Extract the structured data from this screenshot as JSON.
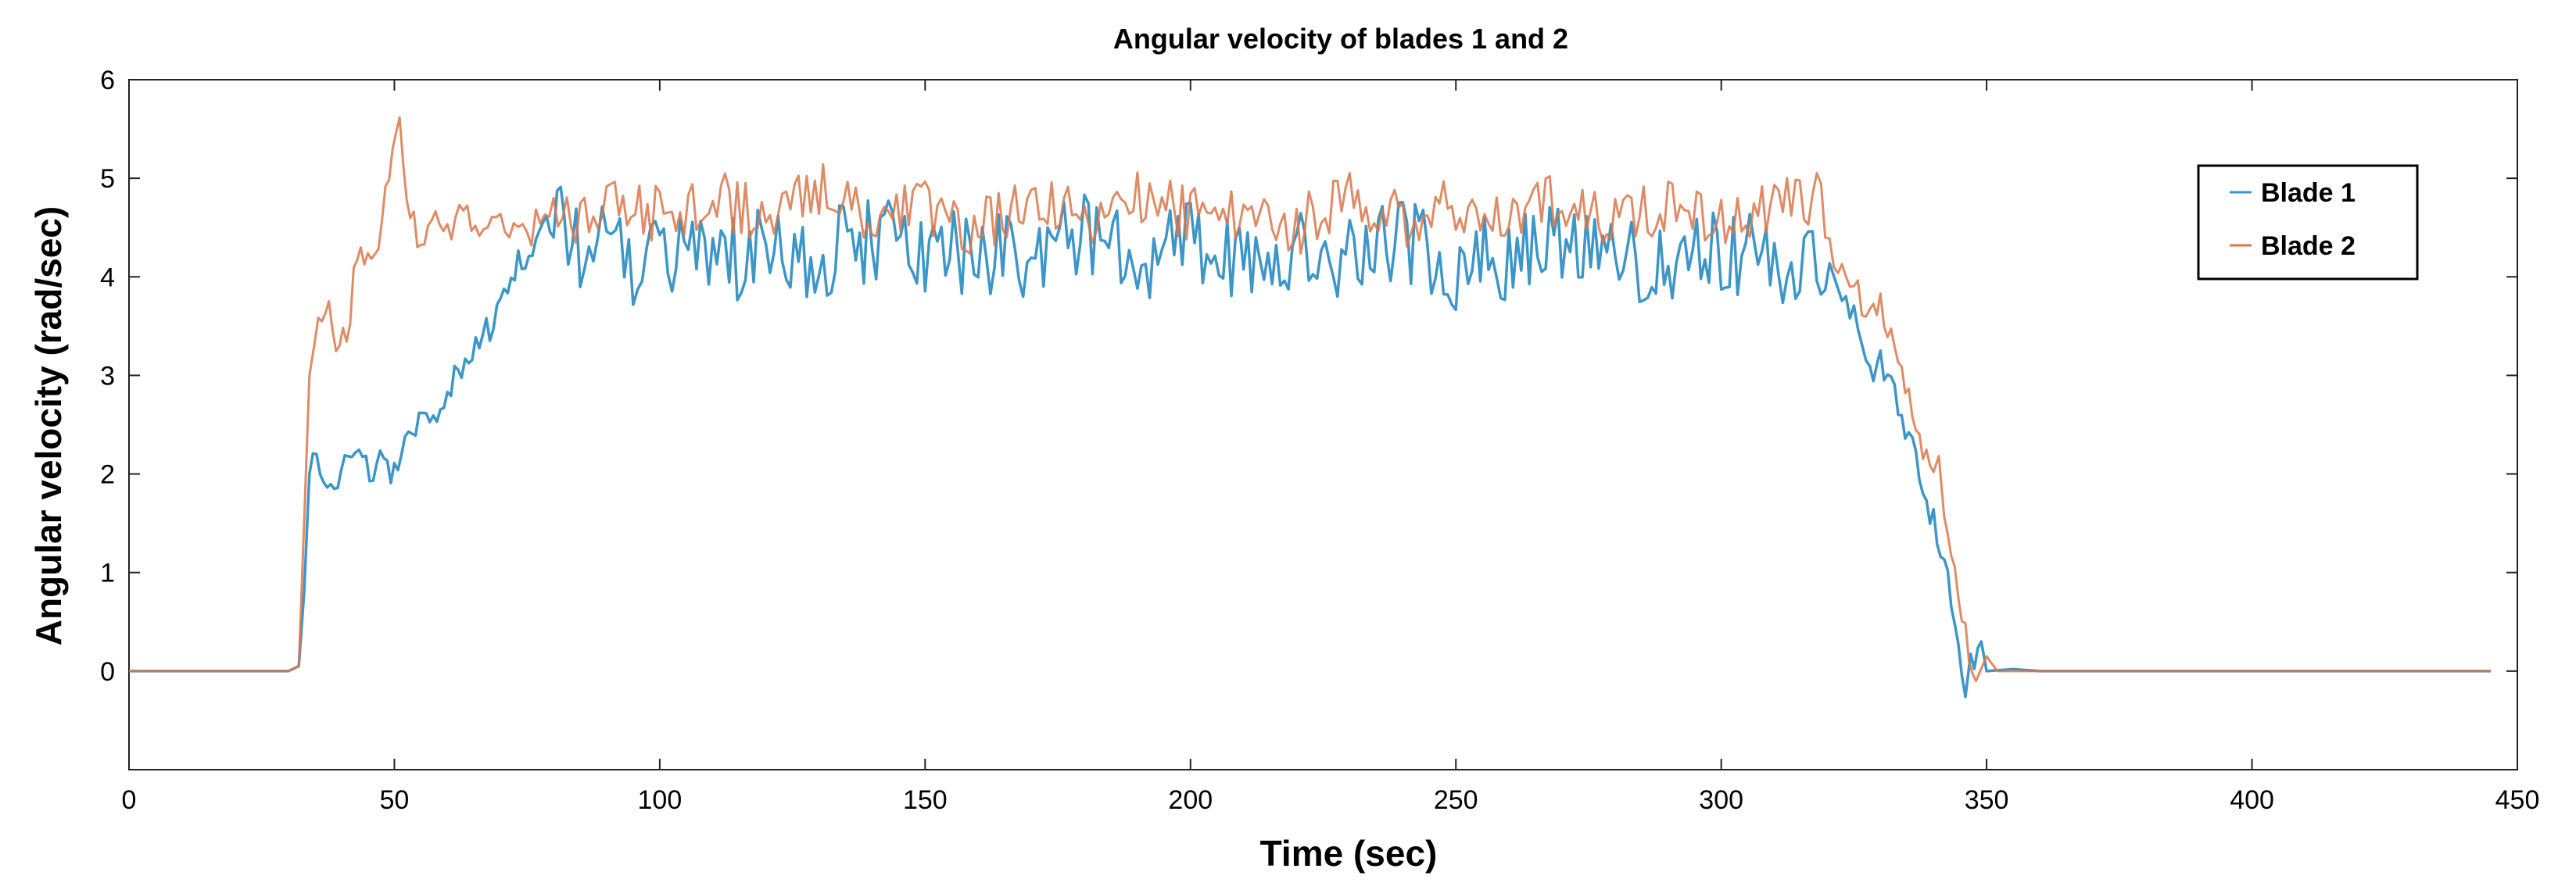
{
  "chart_data": {
    "type": "line",
    "title": "Angular velocity of blades 1 and 2",
    "xlabel": "Time (sec)",
    "ylabel": "Angular velocity (rad/sec)",
    "xlim": [
      0,
      450
    ],
    "ylim": [
      -1,
      6
    ],
    "xticks": [
      0,
      50,
      100,
      150,
      200,
      250,
      300,
      350,
      400,
      450
    ],
    "yticks": [
      0,
      1,
      2,
      3,
      4,
      5,
      6
    ],
    "xtick_labels": [
      "0",
      "50",
      "100",
      "150",
      "200",
      "250",
      "300",
      "350",
      "400",
      "450"
    ],
    "ytick_labels": [
      "0",
      "1",
      "2",
      "3",
      "4",
      "5",
      "6"
    ],
    "legend_position": "top-right",
    "series": [
      {
        "name": "Blade 1",
        "color": "#3c96c8",
        "points": [
          [
            0,
            0
          ],
          [
            30,
            0
          ],
          [
            32,
            0.05
          ],
          [
            33,
            0.8
          ],
          [
            34,
            2.0
          ],
          [
            36,
            2.1
          ],
          [
            38,
            2.0
          ],
          [
            40,
            2.05
          ],
          [
            42,
            2.1
          ],
          [
            44,
            2.2
          ],
          [
            46,
            2.0
          ],
          [
            48,
            2.2
          ],
          [
            50,
            2.0
          ],
          [
            52,
            2.3
          ],
          [
            54,
            2.5
          ],
          [
            56,
            2.7
          ],
          [
            58,
            2.6
          ],
          [
            60,
            2.9
          ],
          [
            62,
            3.1
          ],
          [
            64,
            3.1
          ],
          [
            66,
            3.3
          ],
          [
            68,
            3.5
          ],
          [
            70,
            3.8
          ],
          [
            72,
            4.0
          ],
          [
            74,
            4.2
          ],
          [
            76,
            4.3
          ],
          [
            78,
            4.5
          ],
          [
            80,
            4.4
          ],
          [
            82,
            4.6
          ],
          [
            85,
            4.3
          ],
          [
            90,
            4.4
          ],
          [
            95,
            4.0
          ],
          [
            100,
            4.3
          ],
          [
            110,
            4.1
          ],
          [
            120,
            4.3
          ],
          [
            130,
            4.2
          ],
          [
            140,
            4.4
          ],
          [
            150,
            4.2
          ],
          [
            160,
            4.3
          ],
          [
            170,
            4.2
          ],
          [
            180,
            4.4
          ],
          [
            190,
            4.2
          ],
          [
            200,
            4.3
          ],
          [
            210,
            4.1
          ],
          [
            220,
            4.3
          ],
          [
            230,
            4.2
          ],
          [
            240,
            4.4
          ],
          [
            250,
            4.1
          ],
          [
            260,
            4.2
          ],
          [
            270,
            4.3
          ],
          [
            280,
            4.1
          ],
          [
            290,
            4.2
          ],
          [
            300,
            4.3
          ],
          [
            310,
            4.1
          ],
          [
            318,
            4.2
          ],
          [
            322,
            3.9
          ],
          [
            325,
            3.6
          ],
          [
            328,
            3.0
          ],
          [
            330,
            3.2
          ],
          [
            332,
            2.9
          ],
          [
            334,
            2.6
          ],
          [
            336,
            2.3
          ],
          [
            338,
            1.9
          ],
          [
            340,
            1.5
          ],
          [
            342,
            1.1
          ],
          [
            344,
            0.6
          ],
          [
            346,
            -0.3
          ],
          [
            347,
            0.1
          ],
          [
            349,
            0.3
          ],
          [
            350,
            0
          ],
          [
            355,
            0.02
          ],
          [
            360,
            0
          ],
          [
            380,
            0
          ],
          [
            400,
            0
          ],
          [
            420,
            0
          ],
          [
            445,
            0
          ]
        ]
      },
      {
        "name": "Blade 2",
        "color": "#d9774b",
        "points": [
          [
            0,
            0
          ],
          [
            30,
            0
          ],
          [
            32,
            0.05
          ],
          [
            33,
            1.5
          ],
          [
            34,
            3.0
          ],
          [
            35,
            3.5
          ],
          [
            37,
            3.8
          ],
          [
            39,
            3.4
          ],
          [
            41,
            3.3
          ],
          [
            43,
            4.3
          ],
          [
            45,
            4.3
          ],
          [
            47,
            4.4
          ],
          [
            49,
            5.0
          ],
          [
            51,
            5.6
          ],
          [
            53,
            4.6
          ],
          [
            55,
            4.3
          ],
          [
            57,
            4.7
          ],
          [
            60,
            4.4
          ],
          [
            63,
            4.8
          ],
          [
            66,
            4.4
          ],
          [
            70,
            4.6
          ],
          [
            75,
            4.4
          ],
          [
            80,
            4.8
          ],
          [
            85,
            4.5
          ],
          [
            90,
            4.9
          ],
          [
            100,
            4.6
          ],
          [
            110,
            4.8
          ],
          [
            120,
            4.6
          ],
          [
            130,
            4.9
          ],
          [
            140,
            4.6
          ],
          [
            150,
            4.7
          ],
          [
            160,
            4.5
          ],
          [
            170,
            4.7
          ],
          [
            180,
            4.6
          ],
          [
            190,
            4.8
          ],
          [
            200,
            4.6
          ],
          [
            210,
            4.7
          ],
          [
            220,
            4.5
          ],
          [
            230,
            4.8
          ],
          [
            240,
            4.6
          ],
          [
            250,
            4.7
          ],
          [
            260,
            4.5
          ],
          [
            270,
            4.8
          ],
          [
            280,
            4.6
          ],
          [
            290,
            4.7
          ],
          [
            300,
            4.5
          ],
          [
            310,
            4.7
          ],
          [
            318,
            4.8
          ],
          [
            322,
            4.1
          ],
          [
            325,
            3.9
          ],
          [
            328,
            3.6
          ],
          [
            330,
            3.7
          ],
          [
            332,
            3.4
          ],
          [
            334,
            3.0
          ],
          [
            336,
            2.6
          ],
          [
            338,
            2.2
          ],
          [
            340,
            2.0
          ],
          [
            341,
            2.3
          ],
          [
            342,
            1.6
          ],
          [
            344,
            1.0
          ],
          [
            346,
            0.4
          ],
          [
            348,
            -0.1
          ],
          [
            350,
            0.15
          ],
          [
            352,
            0
          ],
          [
            360,
            0
          ],
          [
            380,
            0
          ],
          [
            400,
            0
          ],
          [
            420,
            0
          ],
          [
            445,
            0
          ]
        ]
      }
    ]
  }
}
